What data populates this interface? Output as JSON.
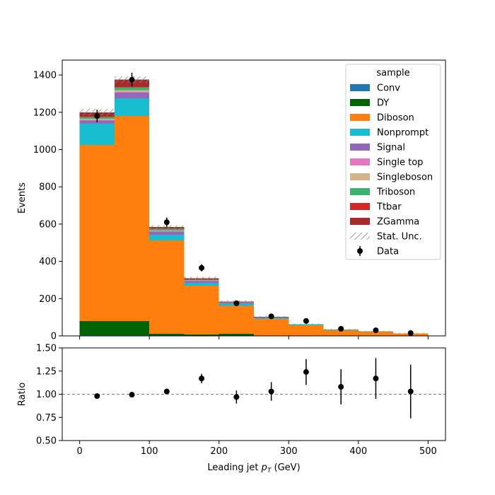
{
  "chart_data": [
    {
      "type": "bar",
      "stacked": true,
      "histogram": true,
      "bin_edges": [
        0,
        50,
        100,
        150,
        200,
        250,
        300,
        350,
        400,
        450,
        500
      ],
      "ylabel": "Events",
      "xlim": [
        -25,
        525
      ],
      "ylim": [
        0,
        1480
      ],
      "yticks": [
        0,
        200,
        400,
        600,
        800,
        1000,
        1200,
        1400
      ],
      "xticks": [
        0,
        100,
        200,
        300,
        400,
        500
      ],
      "legend": {
        "title": "sample",
        "placement": "top-right"
      },
      "series": [
        {
          "name": "Conv",
          "color": "#1f77b4",
          "values": [
            3,
            3,
            0,
            0,
            0,
            0,
            0,
            0,
            0,
            0
          ]
        },
        {
          "name": "DY",
          "color": "#006400",
          "values": [
            77,
            77,
            12,
            8,
            12,
            2,
            2,
            1,
            1,
            1
          ]
        },
        {
          "name": "Diboson",
          "color": "#ff7f0e",
          "values": [
            945,
            1100,
            500,
            262,
            150,
            90,
            55,
            30,
            22,
            12
          ]
        },
        {
          "name": "Nonprompt",
          "color": "#17becf",
          "values": [
            115,
            95,
            30,
            15,
            10,
            5,
            3,
            1,
            1,
            1
          ]
        },
        {
          "name": "Signal",
          "color": "#9467bd",
          "values": [
            15,
            30,
            18,
            10,
            5,
            3,
            1,
            1,
            1,
            0
          ]
        },
        {
          "name": "Single top",
          "color": "#e377c2",
          "values": [
            4,
            5,
            2,
            1,
            1,
            0,
            0,
            0,
            0,
            0
          ]
        },
        {
          "name": "Singleboson",
          "color": "#d2b48c",
          "values": [
            6,
            8,
            4,
            2,
            1,
            0,
            0,
            0,
            0,
            0
          ]
        },
        {
          "name": "Triboson",
          "color": "#3cb371",
          "values": [
            10,
            15,
            8,
            4,
            2,
            1,
            1,
            1,
            0,
            0
          ]
        },
        {
          "name": "Ttbar",
          "color": "#d62728",
          "values": [
            3,
            5,
            2,
            1,
            1,
            0,
            0,
            0,
            0,
            0
          ]
        },
        {
          "name": "ZGamma",
          "color": "#a52a2a",
          "values": [
            22,
            37,
            8,
            7,
            3,
            2,
            1,
            1,
            0,
            0
          ]
        }
      ],
      "stat_unc": {
        "name": "Stat. Unc.",
        "values": [
          18,
          18,
          10,
          8,
          6,
          4,
          3,
          3,
          2,
          2
        ]
      },
      "data": {
        "name": "Data",
        "x": [
          25,
          75,
          125,
          175,
          225,
          275,
          325,
          375,
          425,
          475
        ],
        "y": [
          1180,
          1375,
          610,
          365,
          175,
          105,
          80,
          38,
          30,
          15
        ],
        "err": [
          34,
          37,
          25,
          19,
          13,
          10,
          9,
          6,
          5,
          4
        ]
      }
    },
    {
      "type": "scatter",
      "xlabel": "Leading jet  pT (GeV)",
      "ylabel": "Ratio",
      "xlim": [
        -25,
        525
      ],
      "ylim": [
        0.5,
        1.5
      ],
      "yticks": [
        "0.50",
        "0.75",
        "1.00",
        "1.25",
        "1.50"
      ],
      "xticks": [
        0,
        100,
        200,
        300,
        400,
        500
      ],
      "reference_line": 1.0,
      "x": [
        25,
        75,
        125,
        175,
        225,
        275,
        325,
        375,
        425,
        475
      ],
      "y": [
        0.98,
        0.995,
        1.03,
        1.17,
        0.97,
        1.03,
        1.24,
        1.08,
        1.17,
        1.03
      ],
      "err": [
        0.02,
        0.02,
        0.03,
        0.05,
        0.07,
        0.1,
        0.14,
        0.19,
        0.22,
        0.29
      ]
    }
  ]
}
